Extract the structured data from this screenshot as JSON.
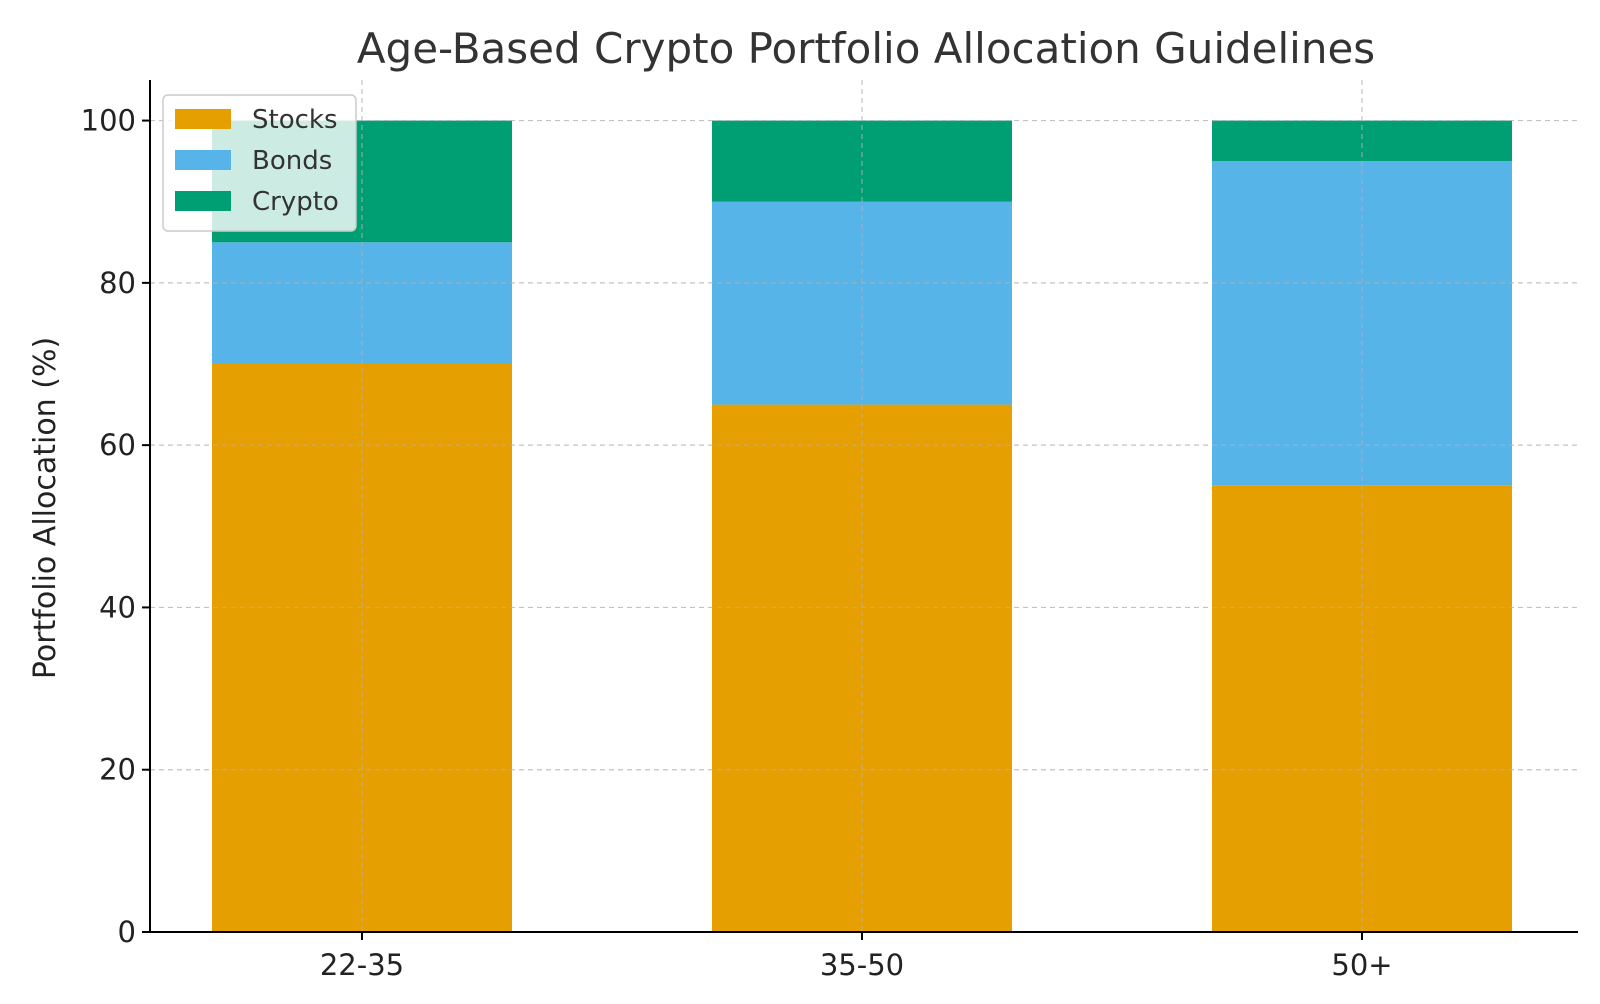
{
  "chart_data": {
    "type": "bar",
    "stacked": true,
    "title": "Age-Based Crypto Portfolio Allocation Guidelines",
    "xlabel": "",
    "ylabel": "Portfolio Allocation (%)",
    "categories": [
      "22-35",
      "35-50",
      "50+"
    ],
    "series": [
      {
        "name": "Stocks",
        "color": "#E69F00",
        "values": [
          70,
          65,
          55
        ]
      },
      {
        "name": "Bonds",
        "color": "#56B4E9",
        "values": [
          15,
          25,
          40
        ]
      },
      {
        "name": "Crypto",
        "color": "#009E73",
        "values": [
          15,
          10,
          5
        ]
      }
    ],
    "ylim": [
      0,
      105
    ],
    "yticks": [
      0,
      20,
      40,
      60,
      80,
      100
    ],
    "grid": true,
    "legend": "top-left"
  }
}
